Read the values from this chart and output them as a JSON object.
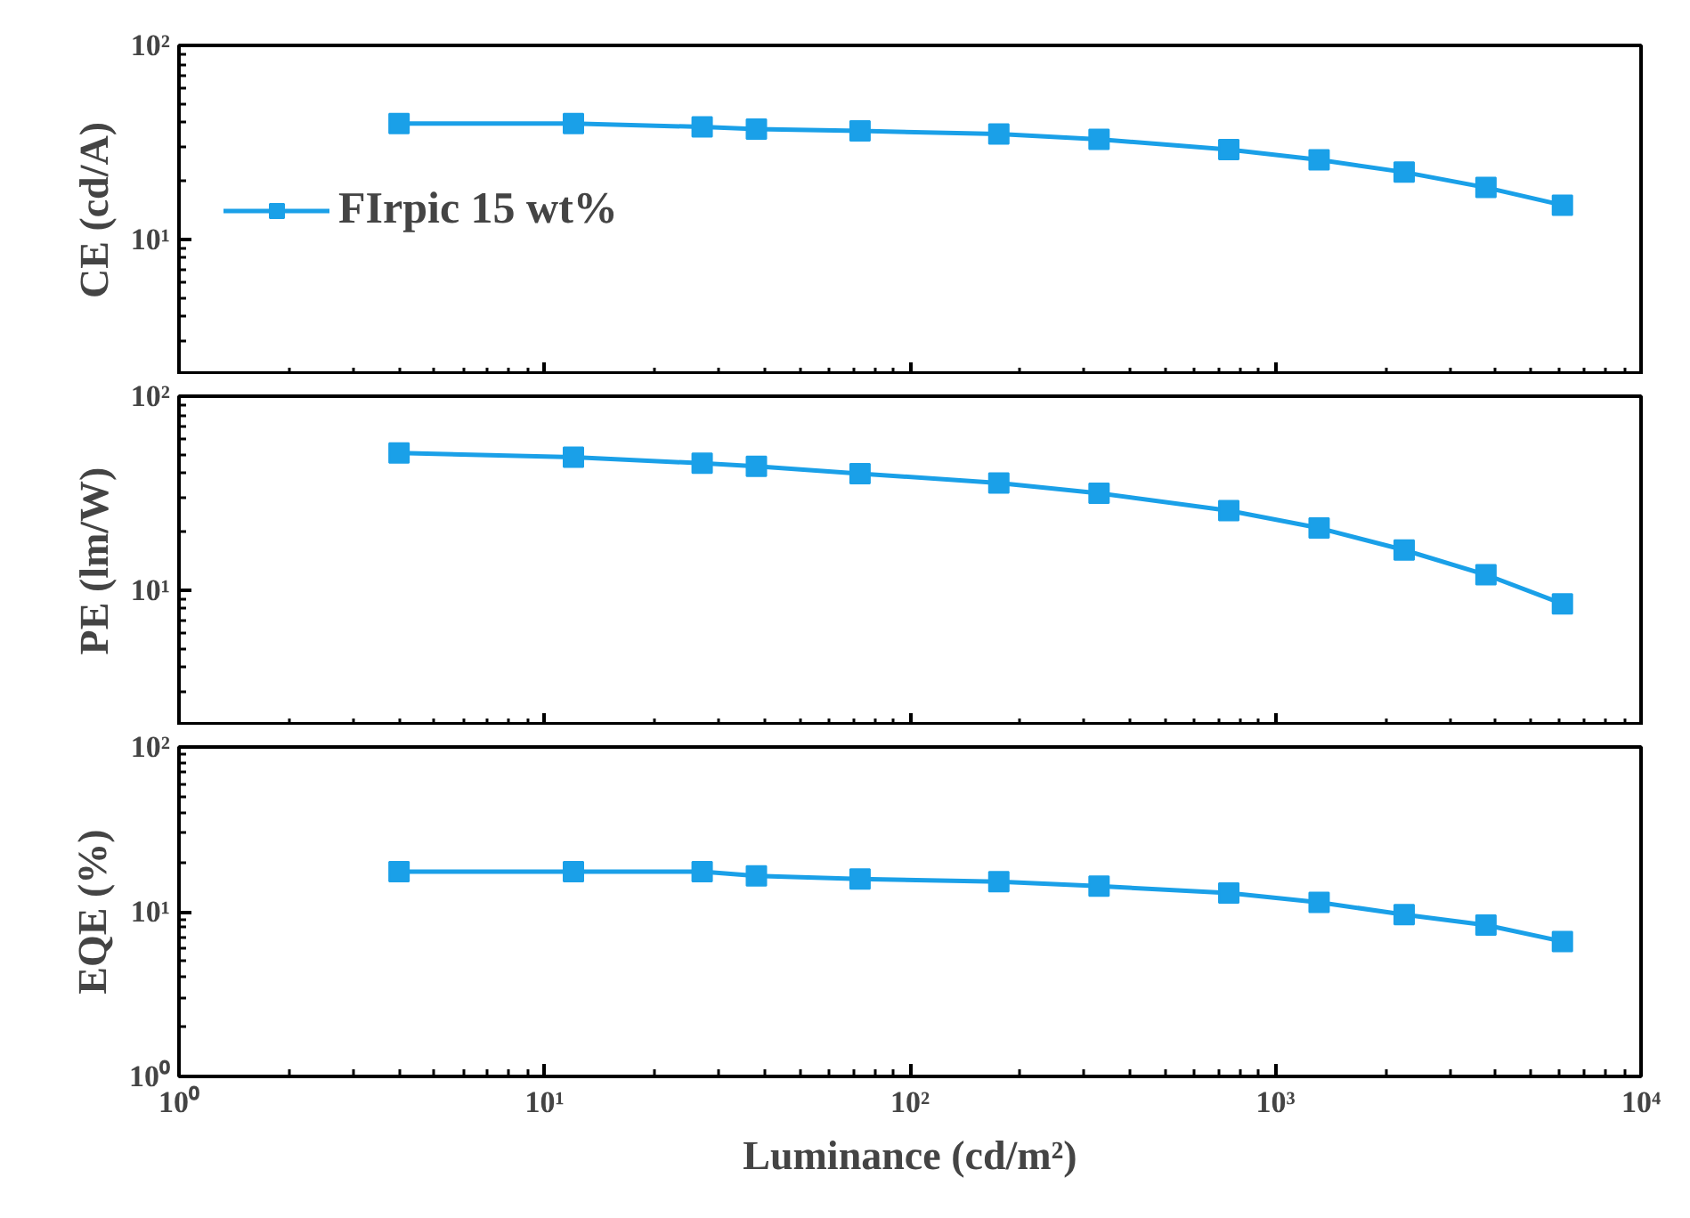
{
  "chart_data": [
    {
      "type": "line",
      "ylabel": "CE (cd/A)",
      "x": [
        4.0,
        12,
        27,
        38,
        73,
        175,
        329,
        745,
        1316,
        2249,
        3765,
        6095
      ],
      "series": [
        {
          "name": "FIrpic 15 wt%",
          "color": "#1aa0e8",
          "values": [
            39.5,
            39.5,
            38,
            37,
            36.2,
            34.9,
            32.8,
            29,
            25.7,
            22.2,
            18.5,
            15.0
          ]
        }
      ],
      "log": "xy",
      "xlim": [
        1,
        10000
      ],
      "xticks": [
        1,
        10,
        100,
        1000,
        10000
      ],
      "ylim": [
        2,
        100
      ],
      "yticks": [
        {
          "value": 10,
          "label": "10¹"
        },
        {
          "value": 100,
          "label": "10²"
        }
      ],
      "tick_labels": "y",
      "marker": "square",
      "legend": "left",
      "grid": false
    },
    {
      "type": "line",
      "ylabel": "PE (lm/W)",
      "x": [
        4.0,
        12,
        27,
        38,
        73,
        175,
        329,
        745,
        1316,
        2249,
        3765,
        6095
      ],
      "series": [
        {
          "color": "#1aa0e8",
          "values": [
            50.9,
            48.5,
            45.1,
            43.5,
            39.9,
            35.7,
            31.6,
            25.7,
            20.9,
            16.1,
            12.0,
            8.5
          ]
        }
      ],
      "log": "xy",
      "xlim": [
        1,
        10000
      ],
      "xticks": [
        1,
        10,
        100,
        1000,
        10000
      ],
      "ylim": [
        2,
        100
      ],
      "yticks": [
        {
          "value": 10,
          "label": "10¹"
        },
        {
          "value": 100,
          "label": "10²"
        }
      ],
      "tick_labels": "y",
      "marker": "square",
      "grid": false
    },
    {
      "type": "line",
      "xlabel": "Luminance (cd/m²)",
      "ylabel": "EQE (%)",
      "x": [
        4.0,
        12,
        27,
        38,
        73,
        175,
        329,
        745,
        1316,
        2249,
        3765,
        6095
      ],
      "series": [
        {
          "color": "#1aa0e8",
          "values": [
            17.5,
            17.5,
            17.5,
            16.5,
            15.8,
            15.2,
            14.3,
            13.0,
            11.4,
            9.6,
            8.3,
            6.6
          ]
        }
      ],
      "log": "xy",
      "xlim": [
        1,
        10000
      ],
      "xticks": [
        {
          "value": 1,
          "label": "10⁰"
        },
        {
          "value": 10,
          "label": "10¹"
        },
        {
          "value": 100,
          "label": "10²"
        },
        {
          "value": 1000,
          "label": "10³"
        },
        {
          "value": 10000,
          "label": "10⁴"
        }
      ],
      "ylim": [
        1,
        100
      ],
      "yticks": [
        {
          "value": 1,
          "label": "10⁰"
        },
        {
          "value": 10,
          "label": "10¹"
        },
        {
          "value": 100,
          "label": "10²"
        }
      ],
      "marker": "square",
      "grid": false
    }
  ]
}
